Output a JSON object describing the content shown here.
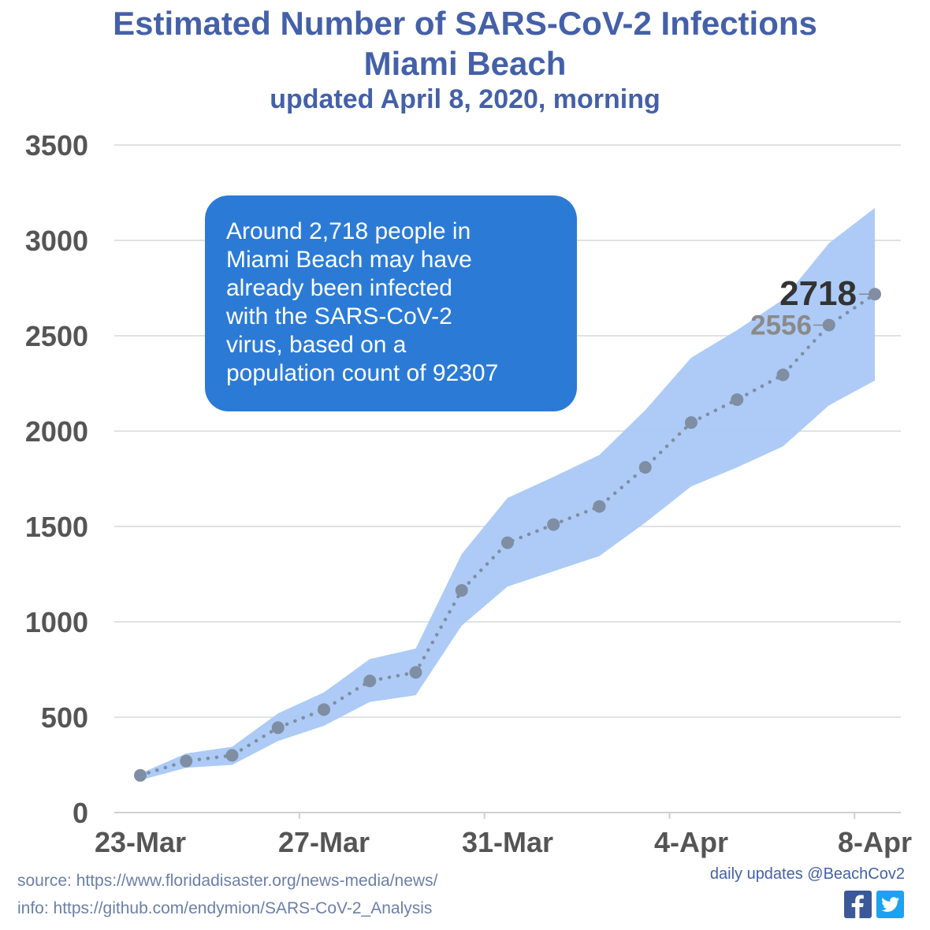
{
  "title": {
    "line1": "Estimated Number of SARS-CoV-2 Infections",
    "line2": "Miami Beach",
    "line3": "updated April 8, 2020, morning"
  },
  "footer": {
    "source": "source: https://www.floridadisaster.org/news-media/news/",
    "info": "info: https://github.com/endymion/SARS-CoV-2_Analysis",
    "updates": "daily updates @BeachCov2",
    "icons": [
      "facebook-icon",
      "twitter-icon"
    ]
  },
  "colors": {
    "title": "#4460a8",
    "band": "#a9c8f5",
    "points": "#7f8ea3",
    "callout": "#2b7bd6"
  },
  "chart_data": {
    "type": "line",
    "ylim": [
      0,
      3500
    ],
    "yticks": [
      "0",
      "500",
      "1000",
      "1500",
      "2000",
      "2500",
      "3000",
      "3500"
    ],
    "xtick_labels": [
      "23-Mar",
      "27-Mar",
      "31-Mar",
      "4-Apr",
      "8-Apr"
    ],
    "xtick_positions": [
      "2020-03-23",
      "2020-03-27",
      "2020-03-31",
      "2020-04-04",
      "2020-04-08"
    ],
    "grid": true,
    "series": [
      {
        "x": [
          "2020-03-23",
          "2020-03-24",
          "2020-03-25",
          "2020-03-26",
          "2020-03-27",
          "2020-03-28",
          "2020-03-29",
          "2020-03-30",
          "2020-03-31",
          "2020-04-01",
          "2020-04-02",
          "2020-04-03",
          "2020-04-04",
          "2020-04-05",
          "2020-04-06",
          "2020-04-07",
          "2020-04-08"
        ],
        "values": [
          195,
          270,
          300,
          445,
          540,
          690,
          735,
          1165,
          1415,
          1510,
          1605,
          1810,
          2045,
          2165,
          2295,
          2556,
          2718
        ],
        "upper": [
          205,
          310,
          345,
          520,
          630,
          805,
          860,
          1355,
          1650,
          1760,
          1875,
          2110,
          2385,
          2530,
          2690,
          2985,
          3170
        ],
        "lower": [
          170,
          235,
          250,
          375,
          455,
          580,
          615,
          980,
          1185,
          1265,
          1345,
          1520,
          1710,
          1810,
          1920,
          2135,
          2265
        ]
      }
    ],
    "point_labels": [
      {
        "x": "2020-04-07",
        "text": "2556"
      },
      {
        "x": "2020-04-08",
        "text": "2718"
      }
    ],
    "annotation": "Around 2,718 people in Miami Beach may have already been infected with the SARS-CoV-2 virus, based on a population count of 92307"
  }
}
